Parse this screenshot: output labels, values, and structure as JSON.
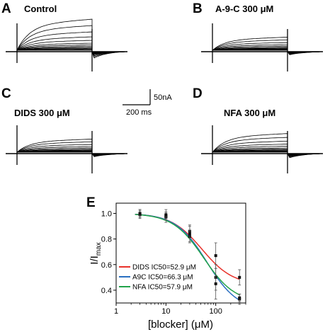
{
  "figure": {
    "panels": [
      {
        "letter": "A",
        "condition": "Control",
        "scale": 1.0
      },
      {
        "letter": "B",
        "condition": "A-9-C  300 μM",
        "scale": 0.42
      },
      {
        "letter": "C",
        "condition": "DIDS  300 μM",
        "scale": 0.42
      },
      {
        "letter": "D",
        "condition": "NFA  300 μM",
        "scale": 0.6
      }
    ],
    "scalebar": {
      "amplitude_label": "50nA",
      "time_label": "200 ms"
    },
    "panel_e_letter": "E"
  },
  "chart_data": {
    "type": "scatter",
    "xscale": "log",
    "xlim": [
      1,
      400
    ],
    "ylim": [
      0.3,
      1.08
    ],
    "xticks": [
      {
        "value": 1,
        "label": "1"
      },
      {
        "value": 10,
        "label": "10"
      },
      {
        "value": 100,
        "label": "100"
      }
    ],
    "yticks": [
      {
        "value": 0.4,
        "label": "0.4"
      },
      {
        "value": 0.6,
        "label": "0.6"
      },
      {
        "value": 0.8,
        "label": "0.8"
      },
      {
        "value": 1.0,
        "label": "1.0"
      }
    ],
    "xlabel": "[blocker]  (μM)",
    "ylabel_main": "I/I",
    "ylabel_sub": "max",
    "legend_position": "lower-left",
    "series": [
      {
        "name": "DIDS IC50=52.9 μM",
        "color": "#e8312a",
        "ic50": 52.9,
        "imin": 0.44,
        "x": [
          3,
          10,
          30,
          100,
          300
        ],
        "y": [
          0.99,
          0.97,
          0.86,
          0.67,
          0.5
        ],
        "err": [
          0.03,
          0.04,
          0.05,
          0.1,
          0.06
        ]
      },
      {
        "name": "A9C  IC50=66.3 μM",
        "color": "#2a6fc1",
        "ic50": 66.3,
        "imin": 0.24,
        "x": [
          3,
          10,
          30,
          100,
          300
        ],
        "y": [
          1.0,
          0.98,
          0.82,
          0.5,
          0.33
        ],
        "err": [
          0.03,
          0.03,
          0.05,
          0.1,
          0.04
        ]
      },
      {
        "name": "NFA  IC50=57.9 μM",
        "color": "#22a34a",
        "ic50": 57.9,
        "imin": 0.3,
        "x": [
          3,
          10,
          30,
          100,
          300
        ],
        "y": [
          1.0,
          0.99,
          0.84,
          0.45,
          0.34
        ],
        "err": [
          0.03,
          0.04,
          0.06,
          0.12,
          0.03
        ]
      }
    ]
  }
}
